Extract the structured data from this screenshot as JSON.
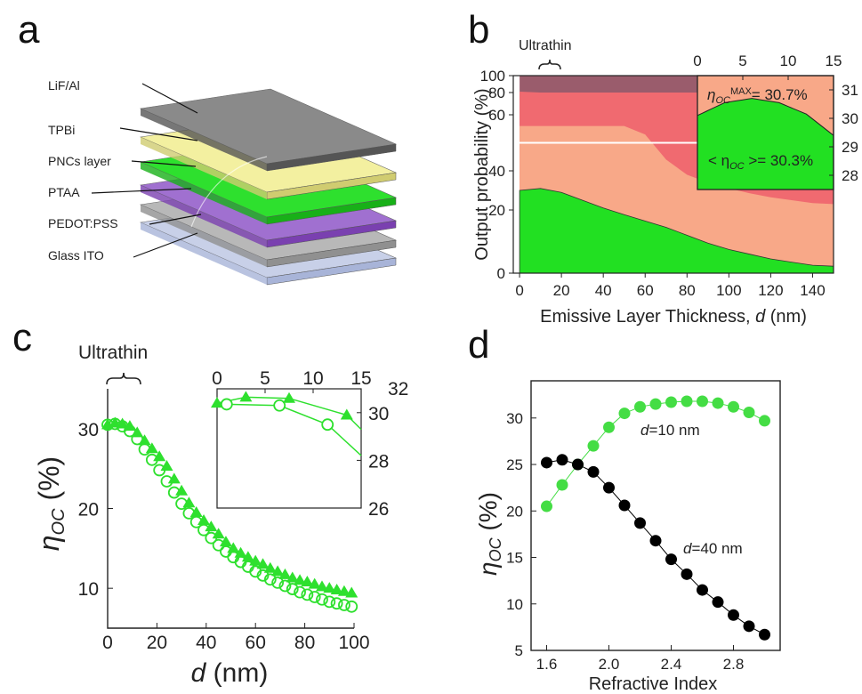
{
  "panels": {
    "a": "a",
    "b": "b",
    "c": "c",
    "d": "d"
  },
  "a": {
    "labels": [
      "LiF/Al",
      "TPBi",
      "PNCs layer",
      "PTAA",
      "PEDOT:PSS",
      "Glass ITO"
    ],
    "colors": {
      "lif": "#8a8a8a",
      "tpbi": "#f3f0a0",
      "pncs": "#2ee02e",
      "ptaa": "#a070d0",
      "pedot": "#b8b8b8",
      "glass": "#c8d0e8"
    }
  },
  "b": {
    "ultrathin": "Ultrathin",
    "ylabel": "Output probability (%)",
    "xlabel_pre": "Emissive Layer Thickness, ",
    "xlabel_var": "d",
    "xlabel_post": " (nm)",
    "inset_max_prefix": "η",
    "inset_max_sub": "OC",
    "inset_max_sup": "MAX",
    "inset_max_value": "= 30.7%",
    "inset_avg_pre": "< η",
    "inset_avg_sub": "OC",
    "inset_avg_post": " >= 30.3%"
  },
  "c": {
    "ultrathin": "Ultrathin",
    "ylabel_eta": "η",
    "ylabel_sub": "OC",
    "ylabel_unit": " (%)",
    "xlabel_var": "d",
    "xlabel_unit": " (nm)"
  },
  "d": {
    "ylabel_eta": "η",
    "ylabel_sub": "OC",
    "ylabel_unit": " (%)",
    "xlabel": "Refractive Index",
    "ann10_var": "d",
    "ann10": "=10 nm",
    "ann40_var": "d",
    "ann40": "=40 nm"
  },
  "chart_data": [
    {
      "panel": "b",
      "type": "area",
      "xlabel": "Emissive Layer Thickness, d (nm)",
      "ylabel": "Output probability (%)",
      "xlim": [
        -3,
        150
      ],
      "ylim": [
        0,
        100
      ],
      "y_scale": "nonlinear",
      "xticks": [
        0,
        20,
        40,
        60,
        80,
        100,
        120,
        140
      ],
      "yticks": [
        0,
        20,
        40,
        60,
        80,
        100
      ],
      "x": [
        0,
        10,
        20,
        30,
        40,
        50,
        60,
        70,
        80,
        90,
        100,
        110,
        120,
        130,
        140,
        150
      ],
      "series": [
        {
          "name": "",
          "color": "#22e022",
          "values": [
            30,
            31,
            29,
            25,
            21,
            18.5,
            16.5,
            14.5,
            12,
            9.5,
            7.5,
            6,
            4.5,
            3.5,
            2.5,
            2.2
          ]
        },
        {
          "name": "",
          "color": "#f8a888",
          "values": [
            56,
            56,
            56,
            56,
            56,
            56,
            53,
            44,
            38,
            34,
            31,
            28.5,
            26.5,
            25,
            23.5,
            23
          ]
        },
        {
          "name": "",
          "color": "#f06a70",
          "values": [
            81,
            80,
            80,
            80,
            80,
            80,
            80,
            80,
            80,
            80,
            80,
            80,
            80,
            80,
            80,
            80
          ]
        },
        {
          "name": "",
          "color": "#9a5c6c",
          "values": [
            100,
            100,
            100,
            100,
            100,
            100,
            100,
            100,
            100,
            100,
            100,
            100,
            100,
            100,
            100,
            100
          ]
        }
      ],
      "reference_line": 50,
      "inset": {
        "xlim": [
          0,
          15
        ],
        "ylim": [
          27.5,
          31.5
        ],
        "xticks": [
          0,
          5,
          10,
          15
        ],
        "yticks": [
          28,
          29,
          30,
          31
        ],
        "x": [
          0,
          3,
          6,
          9,
          12,
          15
        ],
        "values": [
          30.1,
          30.55,
          30.7,
          30.55,
          30.15,
          29.4
        ]
      }
    },
    {
      "panel": "c",
      "type": "scatter",
      "xlabel": "d (nm)",
      "ylabel": "ηOC (%)",
      "xlim": [
        0,
        100
      ],
      "ylim": [
        5,
        35
      ],
      "xticks": [
        0,
        20,
        40,
        60,
        80,
        100
      ],
      "yticks": [
        10,
        20,
        30
      ],
      "series": [
        {
          "name": "",
          "marker": "triangle",
          "x": [
            0,
            3,
            6,
            9,
            12,
            15,
            18,
            21,
            24,
            27,
            30,
            33,
            36,
            39,
            42,
            45,
            48,
            51,
            54,
            57,
            60,
            63,
            66,
            69,
            72,
            75,
            78,
            81,
            84,
            87,
            90,
            93,
            96,
            99
          ],
          "values": [
            30.5,
            30.7,
            30.6,
            30.3,
            29.5,
            28.5,
            27.5,
            26.5,
            25.3,
            23.7,
            22.2,
            20.7,
            19.5,
            18.5,
            17.7,
            16.8,
            15.8,
            15,
            14.4,
            13.9,
            13.4,
            13,
            12.5,
            12.1,
            11.7,
            11.3,
            11,
            10.8,
            10.5,
            10.2,
            10,
            9.8,
            9.6,
            9.4
          ]
        },
        {
          "name": "",
          "marker": "circle",
          "x": [
            0,
            3,
            6,
            9,
            12,
            15,
            18,
            21,
            24,
            27,
            30,
            33,
            36,
            39,
            42,
            45,
            48,
            51,
            54,
            57,
            60,
            63,
            66,
            69,
            72,
            75,
            78,
            81,
            84,
            87,
            90,
            93,
            96,
            99
          ],
          "values": [
            30.5,
            30.6,
            30.3,
            29.7,
            28.7,
            27.4,
            26.1,
            24.8,
            23.4,
            22,
            20.6,
            19.4,
            18.3,
            17.3,
            16.3,
            15.4,
            14.6,
            13.9,
            13.3,
            12.7,
            12.1,
            11.6,
            11.1,
            10.7,
            10.3,
            9.9,
            9.5,
            9.2,
            8.9,
            8.6,
            8.3,
            8.1,
            7.9,
            7.7
          ]
        }
      ],
      "inset": {
        "xlim": [
          0,
          15
        ],
        "ylim": [
          26,
          31
        ],
        "xticks": [
          0,
          5,
          10,
          15
        ],
        "yticks": [
          26,
          28,
          30
        ],
        "triangle_x": [
          0,
          3,
          7.5,
          13.5
        ],
        "triangle_y": [
          30.4,
          30.65,
          30.6,
          29.9
        ],
        "circle_x": [
          1,
          6.5,
          11.5
        ],
        "circle_y": [
          30.35,
          30.3,
          29.5
        ]
      }
    },
    {
      "panel": "d",
      "type": "line",
      "xlabel": "Refractive Index",
      "ylabel": "ηOC (%)",
      "xlim": [
        1.5,
        3.1
      ],
      "ylim": [
        5,
        34
      ],
      "xticks": [
        1.6,
        2.0,
        2.4,
        2.8
      ],
      "yticks": [
        5,
        10,
        15,
        20,
        25,
        30
      ],
      "x": [
        1.6,
        1.7,
        1.8,
        1.9,
        2.0,
        2.1,
        2.2,
        2.3,
        2.4,
        2.5,
        2.6,
        2.7,
        2.8,
        2.9,
        3.0
      ],
      "series": [
        {
          "name": "d=10 nm",
          "color": "#44dd44",
          "values": [
            20.5,
            22.8,
            25,
            27,
            29,
            30.5,
            31.2,
            31.5,
            31.7,
            31.8,
            31.8,
            31.6,
            31.2,
            30.6,
            29.7
          ]
        },
        {
          "name": "d=40 nm",
          "color": "#000000",
          "values": [
            25.2,
            25.5,
            25,
            24.2,
            22.5,
            20.6,
            18.7,
            16.8,
            14.8,
            13.2,
            11.5,
            10.2,
            8.8,
            7.6,
            6.7
          ]
        }
      ]
    }
  ]
}
